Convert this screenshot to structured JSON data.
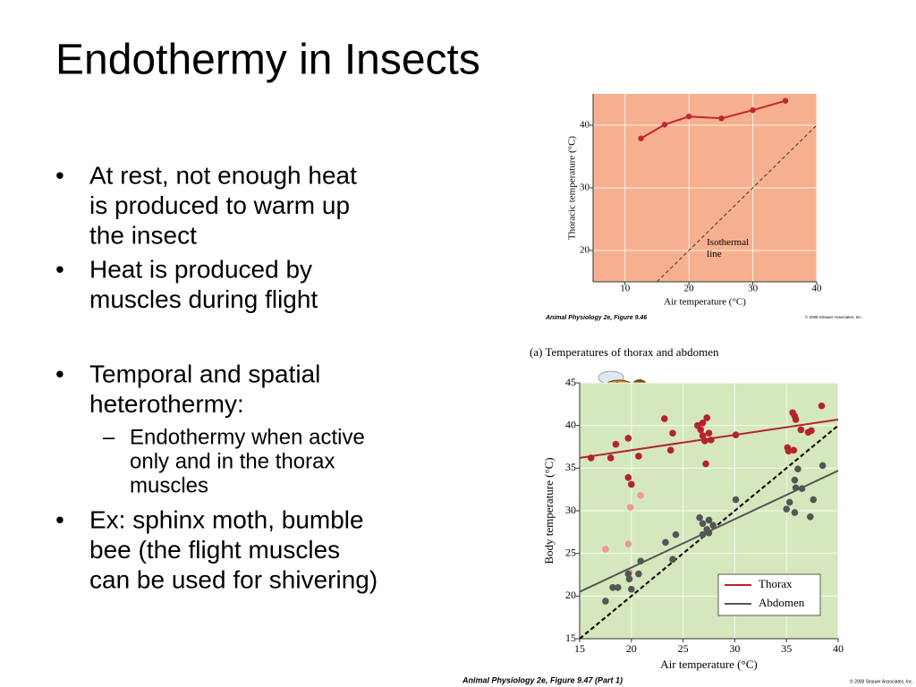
{
  "title": "Endothermy in Insects",
  "bullets": [
    {
      "level": 1,
      "lines": [
        "At rest, not enough heat",
        "is produced to warm up",
        "the insect"
      ]
    },
    {
      "level": 1,
      "lines": [
        "Heat is produced by",
        "muscles during flight"
      ]
    },
    {
      "level": 1,
      "lines": [
        "Temporal and spatial",
        "heterothermy:"
      ]
    },
    {
      "level": 2,
      "lines": [
        "Endothermy when active",
        "only and in the thorax",
        "muscles"
      ]
    },
    {
      "level": 1,
      "lines": [
        "Ex: sphinx moth, bumble",
        "bee (the flight muscles",
        "can be used for shivering)"
      ]
    }
  ],
  "chart_data": [
    {
      "type": "line",
      "x_label": "Air temperature (°C)",
      "y_label": "Thoracic temperature (°C)",
      "annotations": [
        "Isothermal",
        "line"
      ],
      "caption": "Animal Physiology 2e, Figure 9.46",
      "copyright": "© 2008 Sinauer Associates, Inc.",
      "xlim": [
        5,
        40
      ],
      "ylim": [
        15,
        45
      ],
      "xticks": [
        10,
        20,
        30,
        40
      ],
      "yticks": [
        20,
        30,
        40
      ],
      "identity_line": true,
      "background": "#f7b08f",
      "series": [
        {
          "color": "#c0282d",
          "x": [
            12.5,
            16.2,
            20,
            25.1,
            30,
            35.1
          ],
          "values": [
            37.9,
            40.1,
            41.4,
            41.1,
            42.4,
            43.9
          ]
        }
      ]
    },
    {
      "type": "scatter",
      "title": "(a) Temperatures of thorax and abdomen",
      "x_label": "Air temperature (°C)",
      "y_label": "Body temperature (°C)",
      "caption": "Animal Physiology 2e, Figure 9.47 (Part 1)",
      "copyright": "© 2008 Sinauer Associates, Inc.",
      "xlim": [
        15,
        40
      ],
      "ylim": [
        15,
        45
      ],
      "xticks": [
        15,
        20,
        25,
        30,
        35,
        40
      ],
      "yticks": [
        15,
        20,
        25,
        30,
        35,
        40,
        45
      ],
      "identity_line": true,
      "legend": "lower right",
      "background": "#d5e8bd",
      "series": [
        {
          "name": "Thorax",
          "color": "#b5232a",
          "x": [
            15,
            40
          ],
          "values": [
            36.2,
            40.7
          ]
        },
        {
          "name": "Abdomen",
          "color": "#555555",
          "x": [
            15,
            40
          ],
          "values": [
            20.5,
            34.7
          ]
        }
      ],
      "points": [
        {
          "color": "#b5232a",
          "x": [
            16.1,
            18.5,
            18.0,
            19.7,
            20.7,
            19.7,
            20.0,
            23.2,
            24.0,
            23.8,
            26.4,
            26.7,
            26.9,
            27.3,
            26.9,
            27.5,
            27.7,
            27.1,
            27.2,
            30.1,
            35.1,
            35.6,
            35.9,
            35.8,
            36.4,
            37.1,
            37.4,
            38.4,
            35.2,
            35.7
          ],
          "values": [
            36.2,
            37.8,
            36.2,
            38.5,
            36.4,
            33.9,
            33.1,
            40.8,
            39.1,
            37.1,
            40.0,
            39.5,
            40.3,
            40.9,
            38.8,
            39.1,
            38.3,
            38.2,
            35.5,
            38.9,
            37.4,
            41.5,
            40.7,
            41.1,
            39.5,
            39.2,
            39.4,
            42.3,
            37.0,
            37.1
          ]
        },
        {
          "color": "#ec9a93",
          "x": [
            17.5,
            19.7,
            19.9,
            20.9,
            19.8
          ],
          "values": [
            25.5,
            26.1,
            30.4,
            31.8,
            22.8
          ]
        },
        {
          "color": "#555555",
          "x": [
            17.5,
            18.2,
            18.7,
            19.7,
            19.8,
            20.0,
            20.9,
            20.7,
            23.3,
            24.0,
            24.3,
            26.6,
            26.9,
            27.3,
            27.5,
            27.9,
            26.9,
            27.5,
            30.1,
            35.0,
            35.3,
            35.8,
            35.8,
            35.9,
            36.1,
            36.5,
            37.3,
            37.6,
            38.5
          ],
          "values": [
            19.4,
            21.0,
            21.0,
            22.6,
            22.0,
            20.8,
            24.1,
            22.6,
            26.3,
            24.3,
            27.2,
            29.2,
            28.5,
            27.8,
            28.9,
            28.3,
            27.2,
            27.4,
            31.3,
            30.2,
            31.0,
            29.8,
            33.6,
            32.7,
            34.9,
            32.6,
            29.3,
            31.3,
            35.3
          ]
        }
      ]
    }
  ]
}
